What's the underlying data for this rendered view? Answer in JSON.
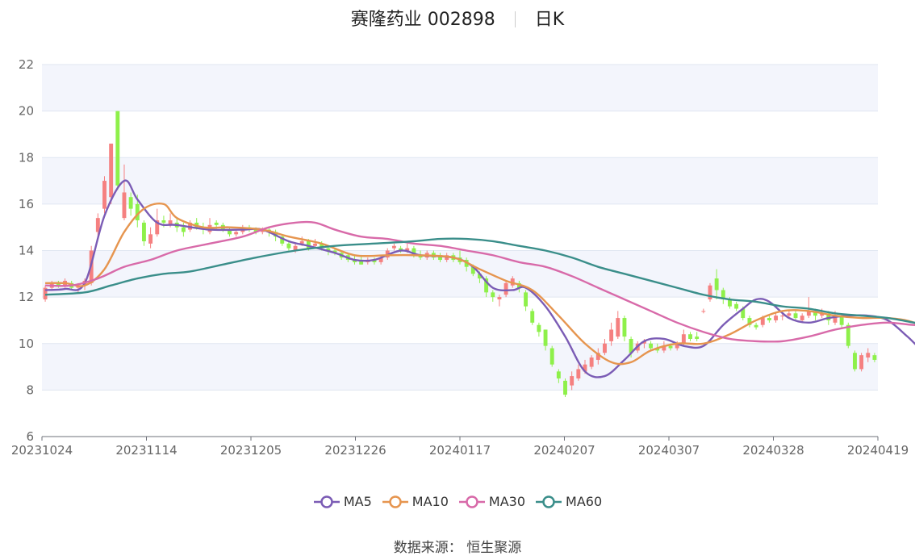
{
  "title": {
    "name": "赛隆药业 002898",
    "period": "日K"
  },
  "source": "数据来源：  恒生聚源",
  "colors": {
    "up": "#f58080",
    "down": "#8ef04a",
    "band": "#f3f5fc",
    "grid": "#e0e6f1"
  },
  "chart_data": {
    "type": "candlestick",
    "ylim": [
      6,
      22
    ],
    "yticks": [
      6,
      8,
      10,
      12,
      14,
      16,
      18,
      20,
      22
    ],
    "xtick_labels": [
      "20231024",
      "20231114",
      "20231205",
      "20231226",
      "20240117",
      "20240207",
      "20240307",
      "20240328",
      "20240419"
    ],
    "legend_position": "bottom-center",
    "candles_ohlc": [
      [
        11.9,
        12.4,
        11.8,
        12.5
      ],
      [
        12.4,
        12.6,
        12.3,
        12.7
      ],
      [
        12.6,
        12.5,
        12.4,
        12.7
      ],
      [
        12.5,
        12.7,
        12.4,
        12.8
      ],
      [
        12.6,
        12.4,
        12.3,
        12.7
      ],
      [
        12.4,
        12.5,
        12.2,
        12.6
      ],
      [
        12.5,
        12.7,
        12.3,
        12.8
      ],
      [
        12.6,
        14.0,
        12.5,
        14.2
      ],
      [
        14.8,
        15.4,
        14.6,
        15.6
      ],
      [
        15.8,
        17.0,
        15.6,
        17.2
      ],
      [
        16.3,
        18.6,
        16.0,
        18.6
      ],
      [
        20.0,
        16.8,
        16.6,
        20.0
      ],
      [
        15.4,
        16.5,
        15.3,
        17.7
      ],
      [
        16.3,
        15.8,
        15.5,
        16.5
      ],
      [
        16.0,
        15.3,
        15.0,
        16.4
      ],
      [
        15.2,
        14.4,
        14.2,
        15.3
      ],
      [
        14.3,
        14.7,
        14.1,
        15.0
      ],
      [
        14.7,
        15.3,
        14.6,
        15.8
      ],
      [
        15.3,
        15.2,
        15.0,
        15.5
      ],
      [
        15.1,
        15.3,
        15.0,
        15.6
      ],
      [
        15.2,
        15.0,
        14.8,
        15.4
      ],
      [
        15.0,
        14.8,
        14.6,
        15.2
      ],
      [
        14.9,
        15.2,
        14.8,
        15.3
      ],
      [
        15.2,
        15.0,
        14.9,
        15.4
      ],
      [
        15.0,
        14.9,
        14.7,
        15.2
      ],
      [
        14.8,
        15.1,
        14.7,
        15.4
      ],
      [
        15.2,
        15.1,
        14.9,
        15.3
      ],
      [
        15.1,
        14.9,
        14.8,
        15.2
      ],
      [
        14.9,
        14.7,
        14.6,
        15.0
      ],
      [
        14.7,
        14.8,
        14.6,
        14.9
      ],
      [
        14.8,
        14.9,
        14.7,
        15.1
      ],
      [
        15.0,
        14.9,
        14.8,
        15.1
      ],
      [
        14.9,
        14.8,
        14.7,
        15.0
      ],
      [
        14.8,
        14.9,
        14.7,
        15.0
      ],
      [
        14.9,
        14.8,
        14.6,
        15.0
      ],
      [
        14.8,
        14.6,
        14.4,
        14.9
      ],
      [
        14.6,
        14.3,
        14.2,
        14.7
      ],
      [
        14.3,
        14.1,
        14.0,
        14.4
      ],
      [
        14.0,
        14.2,
        13.9,
        14.3
      ],
      [
        14.3,
        14.4,
        14.2,
        14.6
      ],
      [
        14.4,
        14.1,
        14.0,
        14.5
      ],
      [
        14.2,
        14.3,
        14.1,
        14.5
      ],
      [
        14.3,
        14.1,
        14.0,
        14.4
      ],
      [
        14.1,
        14.0,
        13.8,
        14.2
      ],
      [
        14.0,
        13.9,
        13.8,
        14.1
      ],
      [
        13.9,
        13.7,
        13.6,
        14.0
      ],
      [
        13.8,
        13.6,
        13.5,
        13.9
      ],
      [
        13.6,
        13.5,
        13.4,
        13.8
      ],
      [
        13.6,
        13.4,
        13.4,
        13.8
      ],
      [
        13.5,
        13.6,
        13.4,
        13.7
      ],
      [
        13.6,
        13.5,
        13.4,
        13.7
      ],
      [
        13.5,
        13.7,
        13.4,
        13.8
      ],
      [
        13.7,
        14.0,
        13.6,
        14.1
      ],
      [
        14.1,
        14.2,
        14.0,
        14.3
      ],
      [
        14.1,
        14.0,
        13.9,
        14.2
      ],
      [
        14.0,
        14.1,
        13.9,
        14.3
      ],
      [
        14.1,
        13.8,
        13.7,
        14.2
      ],
      [
        13.8,
        13.7,
        13.6,
        14.0
      ],
      [
        13.7,
        13.9,
        13.6,
        14.0
      ],
      [
        13.9,
        13.7,
        13.6,
        14.0
      ],
      [
        13.8,
        13.6,
        13.5,
        13.9
      ],
      [
        13.6,
        13.8,
        13.5,
        13.9
      ],
      [
        13.8,
        13.6,
        13.5,
        13.9
      ],
      [
        13.7,
        13.5,
        13.4,
        14.0
      ],
      [
        13.6,
        13.3,
        13.1,
        13.7
      ],
      [
        13.3,
        13.0,
        12.9,
        13.4
      ],
      [
        13.0,
        12.8,
        12.6,
        13.1
      ],
      [
        12.8,
        12.2,
        12.0,
        12.9
      ],
      [
        12.2,
        12.0,
        11.8,
        12.3
      ],
      [
        11.9,
        12.0,
        11.6,
        12.1
      ],
      [
        12.1,
        12.6,
        12.0,
        12.7
      ],
      [
        12.5,
        12.8,
        12.4,
        12.9
      ],
      [
        12.6,
        12.4,
        12.2,
        12.7
      ],
      [
        12.2,
        11.6,
        11.4,
        12.3
      ],
      [
        11.4,
        10.9,
        10.8,
        11.5
      ],
      [
        10.8,
        10.5,
        10.3,
        10.9
      ],
      [
        10.6,
        9.9,
        9.7,
        10.6
      ],
      [
        9.8,
        9.1,
        9.0,
        9.9
      ],
      [
        8.8,
        8.5,
        8.3,
        8.9
      ],
      [
        8.4,
        7.8,
        7.7,
        8.5
      ],
      [
        8.2,
        8.6,
        8.0,
        8.8
      ],
      [
        8.5,
        8.9,
        8.4,
        9.1
      ],
      [
        8.8,
        9.1,
        8.7,
        9.3
      ],
      [
        9.0,
        9.4,
        8.9,
        9.5
      ],
      [
        9.3,
        9.6,
        9.1,
        9.8
      ],
      [
        9.6,
        10.0,
        9.5,
        10.2
      ],
      [
        10.1,
        10.6,
        9.9,
        10.9
      ],
      [
        10.3,
        11.1,
        10.2,
        11.4
      ],
      [
        11.1,
        10.3,
        10.1,
        11.2
      ],
      [
        10.2,
        9.6,
        9.4,
        10.3
      ],
      [
        9.7,
        10.0,
        9.6,
        10.1
      ],
      [
        10.0,
        10.1,
        9.8,
        10.2
      ],
      [
        10.0,
        9.8,
        9.7,
        10.1
      ],
      [
        9.8,
        9.7,
        9.6,
        10.0
      ],
      [
        9.7,
        9.9,
        9.6,
        10.1
      ],
      [
        9.9,
        9.8,
        9.7,
        10.0
      ],
      [
        9.8,
        10.0,
        9.7,
        10.1
      ],
      [
        10.0,
        10.4,
        9.9,
        10.6
      ],
      [
        10.4,
        10.2,
        10.1,
        10.5
      ],
      [
        10.3,
        10.2,
        10.1,
        10.5
      ],
      [
        11.4,
        11.4,
        11.3,
        11.5
      ],
      [
        11.9,
        12.5,
        11.8,
        12.6
      ],
      [
        12.8,
        12.3,
        11.9,
        13.2
      ],
      [
        12.3,
        11.9,
        11.7,
        12.4
      ],
      [
        11.9,
        11.6,
        11.5,
        12.0
      ],
      [
        11.7,
        11.5,
        11.4,
        11.8
      ],
      [
        11.5,
        11.1,
        11.0,
        11.6
      ],
      [
        11.1,
        10.8,
        10.7,
        11.2
      ],
      [
        10.8,
        10.7,
        10.6,
        10.9
      ],
      [
        10.8,
        11.1,
        10.7,
        11.2
      ],
      [
        11.1,
        11.0,
        10.9,
        11.2
      ],
      [
        11.0,
        11.2,
        10.9,
        11.3
      ],
      [
        11.2,
        11.2,
        11.0,
        11.3
      ],
      [
        11.2,
        11.3,
        11.1,
        11.4
      ],
      [
        11.3,
        11.1,
        11.0,
        11.4
      ],
      [
        11.0,
        11.2,
        10.9,
        11.3
      ],
      [
        11.2,
        11.4,
        11.1,
        12.0
      ],
      [
        11.4,
        11.2,
        11.0,
        11.5
      ],
      [
        11.2,
        11.3,
        11.1,
        11.5
      ],
      [
        11.3,
        11.0,
        10.8,
        11.4
      ],
      [
        10.9,
        11.2,
        10.8,
        11.4
      ],
      [
        11.2,
        10.8,
        10.7,
        11.3
      ],
      [
        10.8,
        9.9,
        9.8,
        10.9
      ],
      [
        9.6,
        8.9,
        8.8,
        9.7
      ],
      [
        8.9,
        9.5,
        8.8,
        9.6
      ],
      [
        9.4,
        9.6,
        9.2,
        9.8
      ],
      [
        9.5,
        9.3,
        9.2,
        9.6
      ]
    ],
    "series": [
      {
        "name": "MA5",
        "color": "#7b5cb5",
        "points": [
          [
            0,
            12.3
          ],
          [
            3,
            12.35
          ],
          [
            6,
            12.6
          ],
          [
            9,
            15.5
          ],
          [
            12,
            17.0
          ],
          [
            14,
            16.2
          ],
          [
            17,
            15.2
          ],
          [
            20,
            15.1
          ],
          [
            25,
            14.9
          ],
          [
            30,
            14.9
          ],
          [
            33,
            14.9
          ],
          [
            37,
            14.4
          ],
          [
            40,
            14.2
          ],
          [
            44,
            13.9
          ],
          [
            47,
            13.6
          ],
          [
            50,
            13.6
          ],
          [
            54,
            14.0
          ],
          [
            57,
            13.8
          ],
          [
            62,
            13.7
          ],
          [
            65,
            13.3
          ],
          [
            68,
            12.4
          ],
          [
            71,
            12.3
          ],
          [
            73,
            12.4
          ],
          [
            76,
            11.6
          ],
          [
            79,
            10.3
          ],
          [
            82,
            8.8
          ],
          [
            85,
            8.6
          ],
          [
            88,
            9.3
          ],
          [
            91,
            10.1
          ],
          [
            94,
            10.2
          ],
          [
            97,
            9.9
          ],
          [
            100,
            9.9
          ],
          [
            103,
            10.8
          ],
          [
            106,
            11.5
          ],
          [
            108,
            11.9
          ],
          [
            110,
            11.8
          ],
          [
            113,
            11.1
          ],
          [
            116,
            10.9
          ],
          [
            119,
            11.1
          ],
          [
            122,
            11.2
          ],
          [
            125,
            11.2
          ],
          [
            128,
            11.0
          ],
          [
            131,
            10.3
          ],
          [
            133,
            9.8
          ],
          [
            136,
            9.5
          ]
        ]
      },
      {
        "name": "MA10",
        "color": "#e6954f",
        "points": [
          [
            0,
            12.6
          ],
          [
            3,
            12.6
          ],
          [
            6,
            12.5
          ],
          [
            9,
            13.2
          ],
          [
            12,
            14.8
          ],
          [
            15,
            15.8
          ],
          [
            18,
            16.0
          ],
          [
            20,
            15.4
          ],
          [
            24,
            15.0
          ],
          [
            28,
            15.0
          ],
          [
            33,
            14.9
          ],
          [
            37,
            14.6
          ],
          [
            42,
            14.3
          ],
          [
            47,
            13.8
          ],
          [
            52,
            13.8
          ],
          [
            56,
            13.8
          ],
          [
            62,
            13.7
          ],
          [
            66,
            13.2
          ],
          [
            70,
            12.7
          ],
          [
            74,
            12.3
          ],
          [
            78,
            11.2
          ],
          [
            82,
            10.0
          ],
          [
            86,
            9.2
          ],
          [
            89,
            9.2
          ],
          [
            92,
            9.7
          ],
          [
            96,
            10.0
          ],
          [
            100,
            10.0
          ],
          [
            104,
            10.4
          ],
          [
            108,
            11.0
          ],
          [
            112,
            11.4
          ],
          [
            116,
            11.4
          ],
          [
            120,
            11.2
          ],
          [
            124,
            11.1
          ],
          [
            128,
            11.1
          ],
          [
            132,
            10.9
          ],
          [
            136,
            10.3
          ]
        ]
      },
      {
        "name": "MA30",
        "color": "#d86aa9",
        "points": [
          [
            0,
            12.5
          ],
          [
            4,
            12.5
          ],
          [
            8,
            12.8
          ],
          [
            12,
            13.3
          ],
          [
            16,
            13.6
          ],
          [
            20,
            14.0
          ],
          [
            25,
            14.3
          ],
          [
            30,
            14.6
          ],
          [
            34,
            15.0
          ],
          [
            38,
            15.2
          ],
          [
            41,
            15.2
          ],
          [
            44,
            14.9
          ],
          [
            48,
            14.6
          ],
          [
            52,
            14.5
          ],
          [
            56,
            14.3
          ],
          [
            60,
            14.2
          ],
          [
            64,
            14.0
          ],
          [
            68,
            13.8
          ],
          [
            72,
            13.5
          ],
          [
            76,
            13.3
          ],
          [
            80,
            12.9
          ],
          [
            84,
            12.4
          ],
          [
            88,
            11.9
          ],
          [
            92,
            11.4
          ],
          [
            96,
            10.9
          ],
          [
            100,
            10.5
          ],
          [
            104,
            10.2
          ],
          [
            108,
            10.1
          ],
          [
            112,
            10.1
          ],
          [
            116,
            10.3
          ],
          [
            120,
            10.6
          ],
          [
            124,
            10.8
          ],
          [
            128,
            10.9
          ],
          [
            132,
            10.8
          ],
          [
            136,
            10.8
          ]
        ]
      },
      {
        "name": "MA60",
        "color": "#3a8e8a",
        "points": [
          [
            0,
            12.1
          ],
          [
            6,
            12.2
          ],
          [
            10,
            12.5
          ],
          [
            14,
            12.8
          ],
          [
            18,
            13.0
          ],
          [
            22,
            13.1
          ],
          [
            27,
            13.4
          ],
          [
            32,
            13.7
          ],
          [
            38,
            14.0
          ],
          [
            44,
            14.2
          ],
          [
            50,
            14.3
          ],
          [
            56,
            14.4
          ],
          [
            60,
            14.5
          ],
          [
            64,
            14.5
          ],
          [
            68,
            14.4
          ],
          [
            72,
            14.2
          ],
          [
            76,
            14.0
          ],
          [
            80,
            13.7
          ],
          [
            84,
            13.3
          ],
          [
            88,
            13.0
          ],
          [
            92,
            12.7
          ],
          [
            96,
            12.4
          ],
          [
            100,
            12.1
          ],
          [
            104,
            11.9
          ],
          [
            108,
            11.8
          ],
          [
            112,
            11.6
          ],
          [
            116,
            11.5
          ],
          [
            120,
            11.3
          ],
          [
            124,
            11.2
          ],
          [
            128,
            11.1
          ],
          [
            132,
            10.9
          ],
          [
            136,
            10.7
          ]
        ]
      }
    ]
  }
}
